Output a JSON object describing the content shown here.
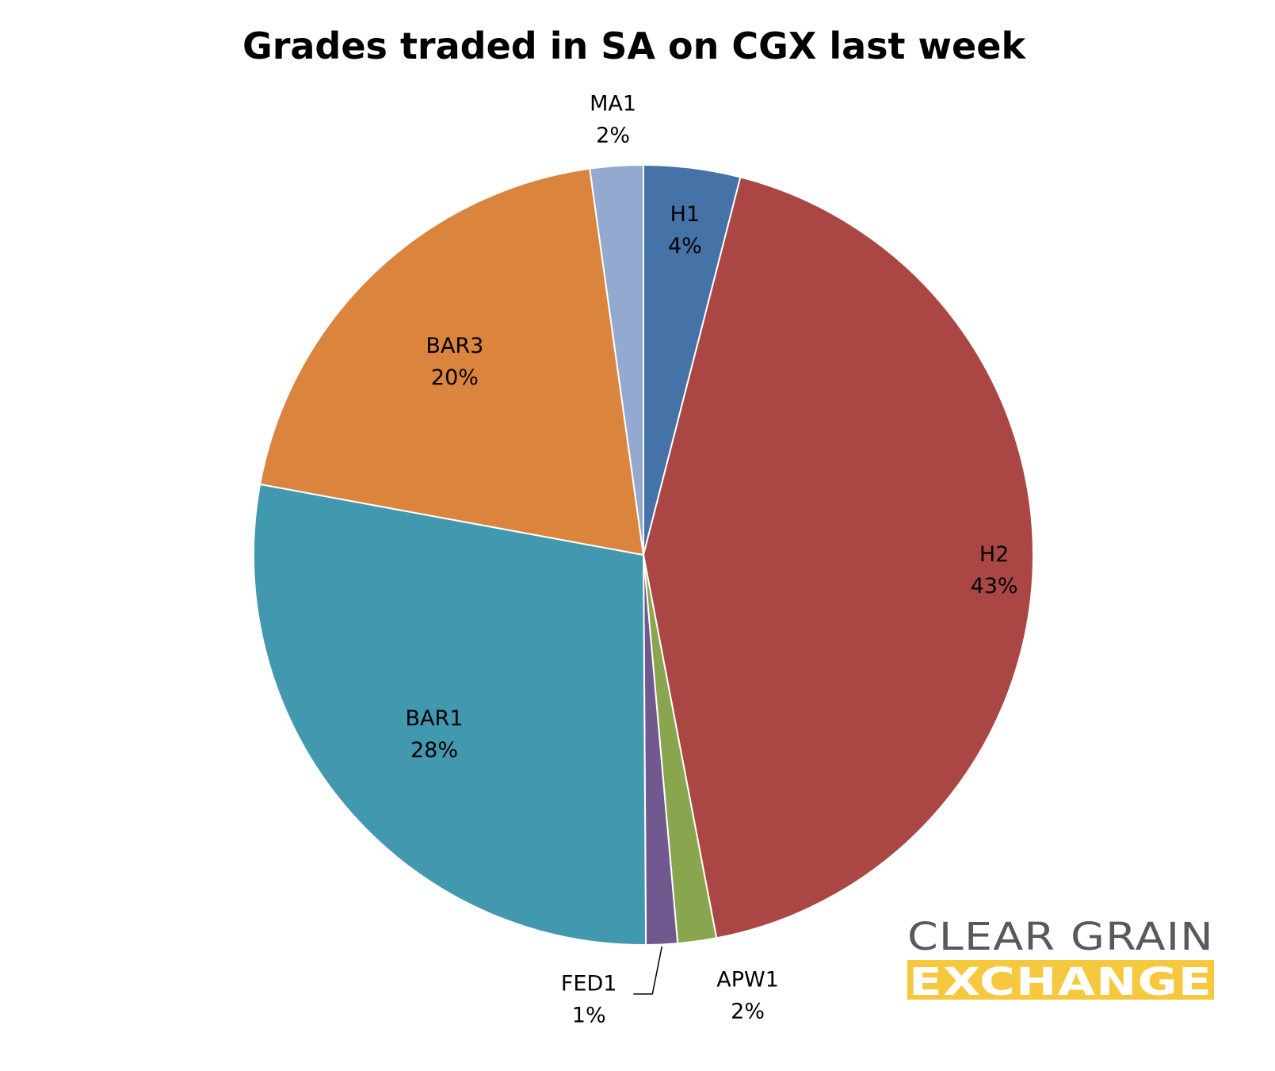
{
  "chart_data": {
    "type": "pie",
    "title": "Grades traded in SA on CGX last week",
    "start_angle_deg": 0,
    "direction": "clockwise",
    "slices": [
      {
        "label": "H1",
        "percent_label": "4%",
        "value": 4.0,
        "color": "#4572a7"
      },
      {
        "label": "H2",
        "percent_label": "43%",
        "value": 43.0,
        "color": "#aa4643"
      },
      {
        "label": "APW1",
        "percent_label": "2%",
        "value": 1.6,
        "color": "#89a54e"
      },
      {
        "label": "FED1",
        "percent_label": "1%",
        "value": 1.3,
        "color": "#71588f"
      },
      {
        "label": "BAR1",
        "percent_label": "28%",
        "value": 28.0,
        "color": "#4198af"
      },
      {
        "label": "BAR3",
        "percent_label": "20%",
        "value": 19.9,
        "color": "#db843d"
      },
      {
        "label": "MA1",
        "percent_label": "2%",
        "value": 2.2,
        "color": "#93a9cf"
      }
    ]
  },
  "logo": {
    "line1": "CLEAR GRAIN",
    "line2": "EXCHANGE",
    "line1_color": "#58595b",
    "band_color": "#f6c83e"
  }
}
